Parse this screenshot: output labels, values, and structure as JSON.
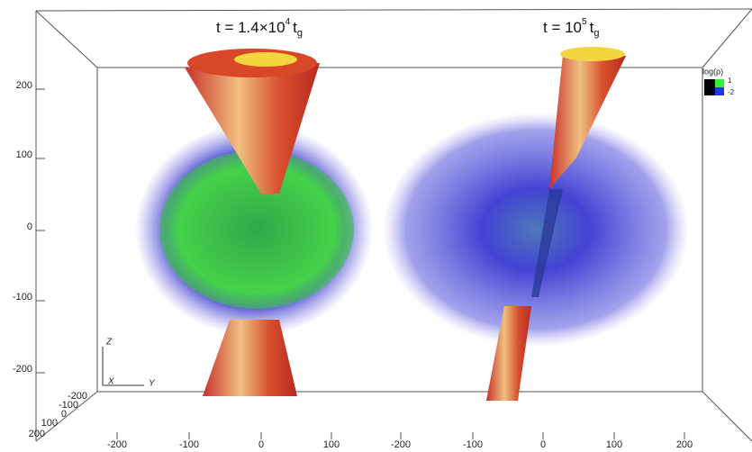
{
  "panels": [
    {
      "title": {
        "prefix": "t = 1.4×10",
        "exponent": "4",
        "unit": "t",
        "subscript": "g"
      }
    },
    {
      "title": {
        "prefix": "t = 10",
        "exponent": "5",
        "unit": "t",
        "subscript": "g"
      }
    }
  ],
  "z_ticks": [
    "200",
    "100",
    "0",
    "-100",
    "-200"
  ],
  "x_ticks": [
    "-200",
    "-100",
    "0",
    "100",
    "200"
  ],
  "y_ticks": [
    "-200",
    "-100",
    "0",
    "100",
    "-200",
    "-100",
    "0",
    "100",
    "200"
  ],
  "axis_labels": {
    "z": "Z",
    "x": "X",
    "y": "Y"
  },
  "colorbar": {
    "label": "log(ρ)",
    "max": "1",
    "min": "-2"
  }
}
